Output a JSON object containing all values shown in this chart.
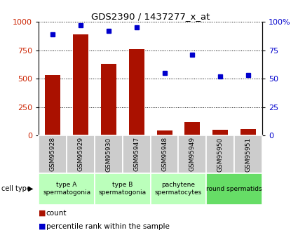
{
  "title": "GDS2390 / 1437277_x_at",
  "samples": [
    "GSM95928",
    "GSM95929",
    "GSM95930",
    "GSM95947",
    "GSM95948",
    "GSM95949",
    "GSM95950",
    "GSM95951"
  ],
  "counts": [
    530,
    890,
    630,
    760,
    45,
    120,
    50,
    55
  ],
  "percentiles": [
    89,
    97,
    92,
    95,
    55,
    71,
    52,
    53
  ],
  "cell_groups": [
    {
      "label": "type A\nspermatogonia",
      "start": 0,
      "end": 2,
      "color": "#bbffbb"
    },
    {
      "label": "type B\nspermatogonia",
      "start": 2,
      "end": 4,
      "color": "#bbffbb"
    },
    {
      "label": "pachytene\nspermatocytes",
      "start": 4,
      "end": 6,
      "color": "#bbffbb"
    },
    {
      "label": "round spermatids",
      "start": 6,
      "end": 8,
      "color": "#66dd66"
    }
  ],
  "bar_color": "#aa1100",
  "scatter_color": "#0000cc",
  "left_tick_color": "#cc2200",
  "right_tick_color": "#0000cc",
  "yticks_left": [
    0,
    250,
    500,
    750,
    1000
  ],
  "yticks_right": [
    0,
    25,
    50,
    75,
    100
  ],
  "ylim_left": [
    0,
    1000
  ],
  "ylim_right": [
    0,
    100
  ],
  "sample_bg_color": "#cccccc",
  "cell_type_label": "cell type",
  "legend_count": "count",
  "legend_pct": "percentile rank within the sample"
}
